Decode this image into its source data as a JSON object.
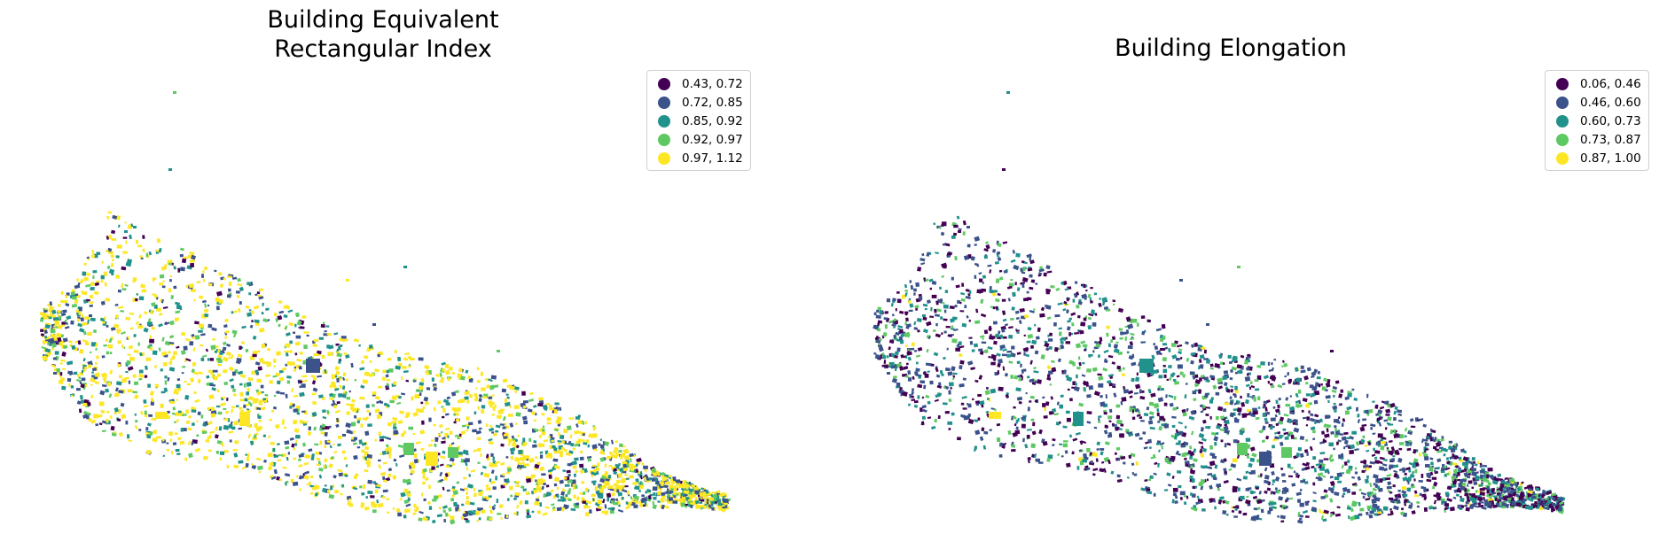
{
  "palette": [
    "#440154",
    "#3b528b",
    "#21918c",
    "#5ec962",
    "#fde725"
  ],
  "maps": [
    {
      "title": "Building Equivalent\nRectangular Index",
      "legend": [
        {
          "label": "0.43, 0.72",
          "color": "#440154",
          "icon": "circle-marker"
        },
        {
          "label": "0.72, 0.85",
          "color": "#3b528b",
          "icon": "circle-marker"
        },
        {
          "label": "0.85, 0.92",
          "color": "#21918c",
          "icon": "circle-marker"
        },
        {
          "label": "0.92, 0.97",
          "color": "#5ec962",
          "icon": "circle-marker"
        },
        {
          "label": "0.97, 1.12",
          "color": "#fde725",
          "icon": "circle-marker"
        }
      ]
    },
    {
      "title": "Building Elongation",
      "legend": [
        {
          "label": "0.06, 0.46",
          "color": "#440154",
          "icon": "circle-marker"
        },
        {
          "label": "0.46, 0.60",
          "color": "#3b528b",
          "icon": "circle-marker"
        },
        {
          "label": "0.60, 0.73",
          "color": "#21918c",
          "icon": "circle-marker"
        },
        {
          "label": "0.73, 0.87",
          "color": "#5ec962",
          "icon": "circle-marker"
        },
        {
          "label": "0.87, 1.00",
          "color": "#fde725",
          "icon": "circle-marker"
        }
      ]
    }
  ]
}
